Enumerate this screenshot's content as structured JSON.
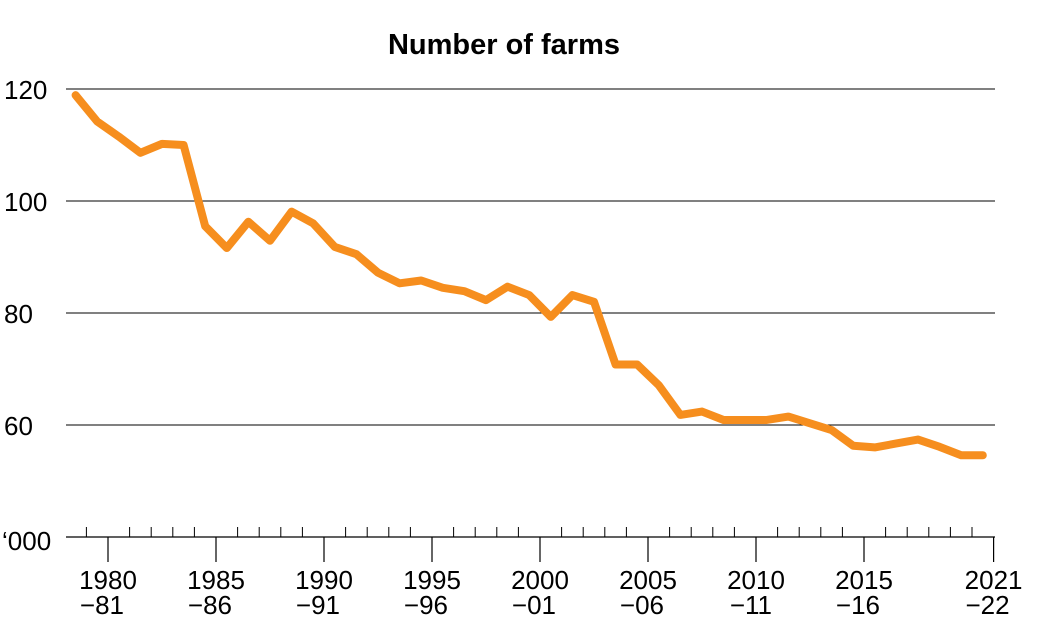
{
  "chart_data": {
    "type": "line",
    "title": "Number of farms",
    "ylabel": "",
    "yunit_label": "‘000",
    "ylim": [
      40,
      120
    ],
    "yticks": [
      60,
      80,
      100,
      120
    ],
    "grid": true,
    "line_color": "#F68E1E",
    "xtick_labels": [
      {
        "year": 1980,
        "top": "1980",
        "bottom": "−81"
      },
      {
        "year": 1985,
        "top": "1985",
        "bottom": "−86"
      },
      {
        "year": 1990,
        "top": "1990",
        "bottom": "−91"
      },
      {
        "year": 1995,
        "top": "1995",
        "bottom": "−96"
      },
      {
        "year": 2000,
        "top": "2000",
        "bottom": "−01"
      },
      {
        "year": 2005,
        "top": "2005",
        "bottom": "−06"
      },
      {
        "year": 2010,
        "top": "2010",
        "bottom": "−11"
      },
      {
        "year": 2015,
        "top": "2015",
        "bottom": "−16"
      },
      {
        "year": 2021,
        "top": "2021",
        "bottom": "−22"
      }
    ],
    "x_start_years": [
      1978,
      1979,
      1980,
      1981,
      1982,
      1983,
      1984,
      1985,
      1986,
      1987,
      1988,
      1989,
      1990,
      1991,
      1992,
      1993,
      1994,
      1995,
      1996,
      1997,
      1998,
      1999,
      2000,
      2001,
      2002,
      2003,
      2004,
      2005,
      2006,
      2007,
      2008,
      2009,
      2010,
      2011,
      2012,
      2013,
      2014,
      2015,
      2016,
      2017,
      2018,
      2019,
      2020
    ],
    "values": [
      118.9,
      114.2,
      111.5,
      108.6,
      110.2,
      110.0,
      95.5,
      91.6,
      96.3,
      92.9,
      98.1,
      96.0,
      91.8,
      90.5,
      87.2,
      85.3,
      85.8,
      84.5,
      83.9,
      82.3,
      84.7,
      83.2,
      79.3,
      83.2,
      82.0,
      70.8,
      70.8,
      67.1,
      61.8,
      62.4,
      60.9,
      60.9,
      60.9,
      61.5,
      60.3,
      59.1,
      56.3,
      56.0,
      56.7,
      57.4,
      56.1,
      54.6,
      54.6
    ]
  }
}
